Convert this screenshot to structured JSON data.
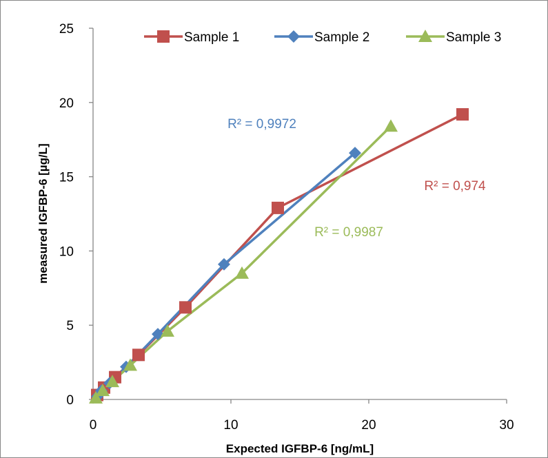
{
  "chart_data": {
    "type": "scatter",
    "title": "",
    "xlabel": "Expected IGFBP-6 [ng/mL]",
    "ylabel": "measured IGFBP-6 [µg/L]",
    "xlim": [
      0,
      30
    ],
    "ylim": [
      0,
      25
    ],
    "x_ticks": [
      "0",
      "10",
      "20",
      "30"
    ],
    "y_ticks": [
      "0",
      "5",
      "10",
      "15",
      "20",
      "25"
    ],
    "grid": false,
    "legend_position": "top",
    "series": [
      {
        "name": "Sample 1",
        "color": "#C0504D",
        "marker": "square",
        "x": [
          0.3,
          0.8,
          1.6,
          3.3,
          6.7,
          13.4,
          26.8
        ],
        "y": [
          0.3,
          0.8,
          1.5,
          3.0,
          6.2,
          12.9,
          19.2
        ],
        "r2": "R² = 0,974"
      },
      {
        "name": "Sample 2",
        "color": "#4F81BD",
        "marker": "diamond",
        "x": [
          0.3,
          0.6,
          1.2,
          2.4,
          4.7,
          9.5,
          19.0
        ],
        "y": [
          0.2,
          0.6,
          1.1,
          2.2,
          4.4,
          9.1,
          16.6
        ],
        "r2": "R² = 0,9972"
      },
      {
        "name": "Sample 3",
        "color": "#9BBB59",
        "marker": "triangle",
        "x": [
          0.2,
          0.7,
          1.4,
          2.7,
          5.4,
          10.8,
          21.6
        ],
        "y": [
          0.1,
          0.6,
          1.2,
          2.3,
          4.6,
          8.5,
          18.4
        ],
        "r2": "R² = 0,9987"
      }
    ]
  }
}
